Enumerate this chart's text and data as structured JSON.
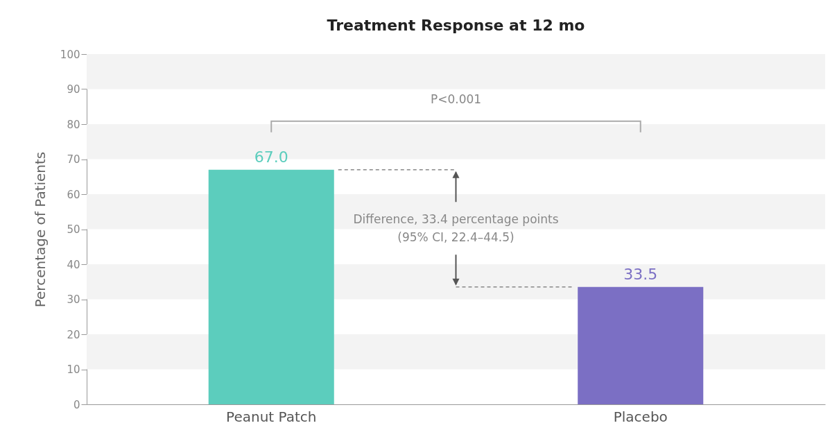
{
  "chart_data": {
    "type": "bar",
    "title": "Treatment Response at 12 mo",
    "ylabel": "Percentage of Patients",
    "categories": [
      "Peanut Patch",
      "Placebo"
    ],
    "values": [
      67.0,
      33.5
    ],
    "colors": [
      "#5ccdbd",
      "#7b6fc4"
    ],
    "value_labels": [
      "67.0",
      "33.5"
    ],
    "ylim": [
      0,
      100
    ],
    "yticks": [
      0,
      10,
      20,
      30,
      40,
      50,
      60,
      70,
      80,
      90,
      100
    ],
    "bands": [
      {
        "axis": "y",
        "from": 10,
        "to": 20,
        "color": "#f3f3f3"
      },
      {
        "axis": "y",
        "from": 30,
        "to": 40,
        "color": "#f3f3f3"
      },
      {
        "axis": "y",
        "from": 50,
        "to": 60,
        "color": "#f3f3f3"
      },
      {
        "axis": "y",
        "from": 70,
        "to": 80,
        "color": "#f3f3f3"
      },
      {
        "axis": "y",
        "from": 90,
        "to": 100,
        "color": "#f3f3f3"
      }
    ],
    "annotations": [
      "P<0.001",
      "Difference, 33.4 percentage points",
      "(95% CI, 22.4–44.5)"
    ]
  }
}
